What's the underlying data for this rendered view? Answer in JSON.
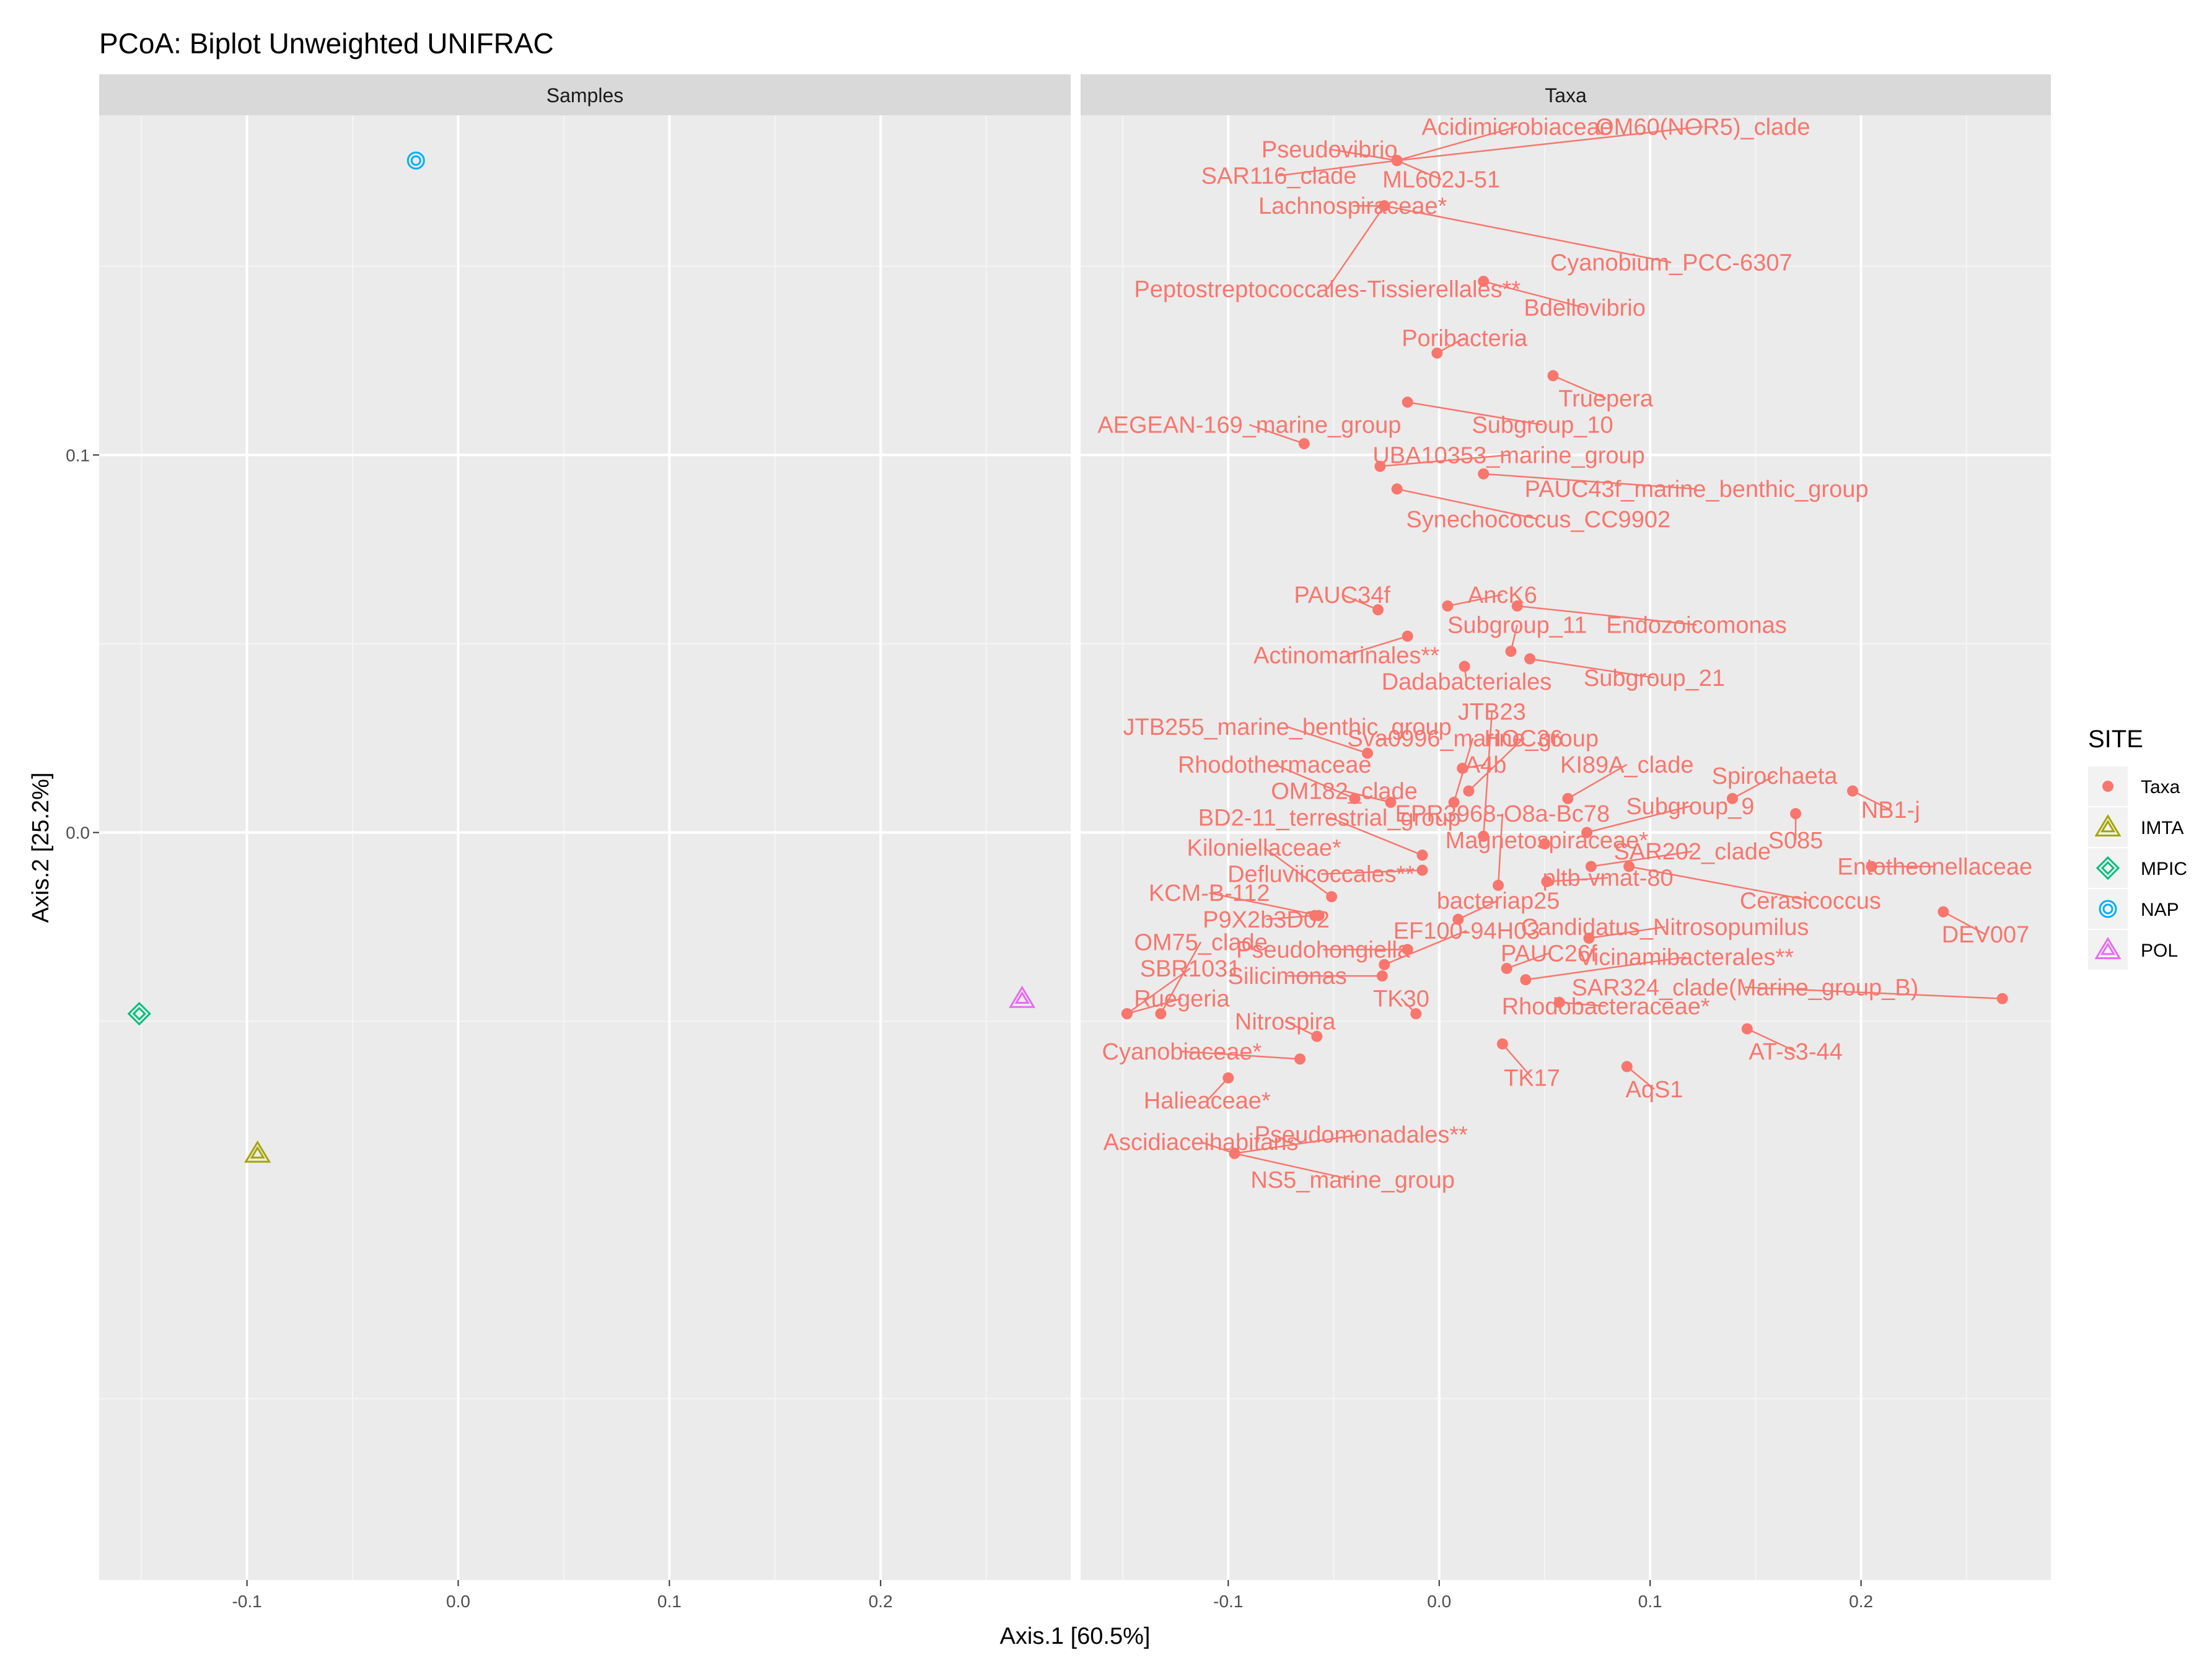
{
  "chart_data": {
    "type": "scatter",
    "title": "PCoA: Biplot Unweighted UNIFRAC",
    "xlabel": "Axis.1   [60.5%]",
    "ylabel": "Axis.2   [25.2%]",
    "xlim": [
      -0.17,
      0.29
    ],
    "ylim": [
      -0.198,
      0.19
    ],
    "x_ticks": [
      -0.1,
      0.0,
      0.1,
      0.2
    ],
    "x_tick_labels": [
      "-0.1",
      "0.0",
      "0.1",
      "0.2"
    ],
    "y_ticks": [
      0.0,
      0.1
    ],
    "y_tick_labels": [
      "0.0",
      "0.1"
    ],
    "grid": true,
    "legend_position": "right",
    "colors": {
      "Taxa": "#f8766d",
      "IMTA": "#a3a500",
      "MPIC": "#00bf7d",
      "NAP": "#00b0f6",
      "POL": "#e76bf3"
    },
    "legend": {
      "title": "SITE",
      "entries": [
        {
          "name": "Taxa",
          "shape": "dot",
          "color": "#f8766d"
        },
        {
          "name": "IMTA",
          "shape": "triangle",
          "color": "#a3a500"
        },
        {
          "name": "MPIC",
          "shape": "diamond",
          "color": "#00bf7d"
        },
        {
          "name": "NAP",
          "shape": "circle",
          "color": "#00b0f6"
        },
        {
          "name": "POL",
          "shape": "triangle",
          "color": "#e76bf3"
        }
      ]
    },
    "panels": [
      {
        "strip": "Samples",
        "points": [
          {
            "site": "NAP",
            "x": -0.02,
            "y": 0.178
          },
          {
            "site": "MPIC",
            "x": -0.151,
            "y": -0.048
          },
          {
            "site": "IMTA",
            "x": -0.095,
            "y": -0.085
          },
          {
            "site": "POL",
            "x": 0.267,
            "y": -0.044
          }
        ]
      },
      {
        "strip": "Taxa",
        "points": [
          {
            "label": "Acidimicrobiaceae",
            "x": -0.02,
            "y": 0.178,
            "lx": 0.037,
            "ly": 0.187
          },
          {
            "label": "OM60(NOR5)_clade",
            "x": -0.02,
            "y": 0.178,
            "lx": 0.125,
            "ly": 0.187
          },
          {
            "label": "Pseudovibrio",
            "x": -0.02,
            "y": 0.178,
            "lx": -0.052,
            "ly": 0.181
          },
          {
            "label": "SAR116_clade",
            "x": -0.02,
            "y": 0.178,
            "lx": -0.076,
            "ly": 0.174
          },
          {
            "label": "ML602J-51",
            "x": -0.02,
            "y": 0.178,
            "lx": 0.001,
            "ly": 0.173
          },
          {
            "label": "Lachnospiraceae*",
            "x": -0.026,
            "y": 0.166,
            "lx": -0.041,
            "ly": 0.166
          },
          {
            "label": "Cyanobium_PCC-6307",
            "x": -0.026,
            "y": 0.166,
            "lx": 0.11,
            "ly": 0.151
          },
          {
            "label": "Peptostreptococcales-Tissierellales**",
            "x": -0.026,
            "y": 0.166,
            "lx": -0.053,
            "ly": 0.144
          },
          {
            "label": "Bdellovibrio",
            "x": 0.021,
            "y": 0.146,
            "lx": 0.069,
            "ly": 0.139
          },
          {
            "label": "Poribacteria",
            "x": -0.001,
            "y": 0.127,
            "lx": 0.012,
            "ly": 0.131
          },
          {
            "label": "Truepera",
            "x": 0.054,
            "y": 0.121,
            "lx": 0.079,
            "ly": 0.115
          },
          {
            "label": "Subgroup_10",
            "x": -0.015,
            "y": 0.114,
            "lx": 0.049,
            "ly": 0.108
          },
          {
            "label": "AEGEAN-169_marine_group",
            "x": -0.064,
            "y": 0.103,
            "lx": -0.09,
            "ly": 0.108
          },
          {
            "label": "UBA10353_marine_group",
            "x": -0.028,
            "y": 0.097,
            "lx": 0.033,
            "ly": 0.1
          },
          {
            "label": "PAUC43f_marine_benthic_group",
            "x": 0.021,
            "y": 0.095,
            "lx": 0.122,
            "ly": 0.091
          },
          {
            "label": "Synechococcus_CC9902",
            "x": -0.02,
            "y": 0.091,
            "lx": 0.047,
            "ly": 0.083
          },
          {
            "label": "PAUC34f",
            "x": -0.029,
            "y": 0.059,
            "lx": -0.046,
            "ly": 0.063
          },
          {
            "label": "AncK6",
            "x": 0.004,
            "y": 0.06,
            "lx": 0.03,
            "ly": 0.063
          },
          {
            "label": "Endozoicomonas",
            "x": 0.037,
            "y": 0.06,
            "lx": 0.122,
            "ly": 0.055
          },
          {
            "label": "Subgroup_11",
            "x": 0.034,
            "y": 0.048,
            "lx": 0.037,
            "ly": 0.055
          },
          {
            "label": "Actinomarinales**",
            "x": -0.015,
            "y": 0.052,
            "lx": -0.044,
            "ly": 0.047
          },
          {
            "label": "Subgroup_21",
            "x": 0.043,
            "y": 0.046,
            "lx": 0.102,
            "ly": 0.041
          },
          {
            "label": "Dadabacteriales",
            "x": 0.012,
            "y": 0.044,
            "lx": 0.013,
            "ly": 0.04
          },
          {
            "label": "JTB23",
            "x": 0.021,
            "y": -0.001,
            "lx": 0.025,
            "ly": 0.032
          },
          {
            "label": "JTB255_marine_benthic_group",
            "x": -0.034,
            "y": 0.021,
            "lx": -0.072,
            "ly": 0.028
          },
          {
            "label": "Sva0996_marine_group",
            "x": 0.007,
            "y": 0.008,
            "lx": 0.016,
            "ly": 0.025
          },
          {
            "label": "HOC36",
            "x": 0.014,
            "y": 0.011,
            "lx": 0.04,
            "ly": 0.025
          },
          {
            "label": "Rhodothermaceae",
            "x": -0.04,
            "y": 0.009,
            "lx": -0.078,
            "ly": 0.018
          },
          {
            "label": "A4b",
            "x": 0.011,
            "y": 0.017,
            "lx": 0.022,
            "ly": 0.018
          },
          {
            "label": "KI89A_clade",
            "x": 0.061,
            "y": 0.009,
            "lx": 0.089,
            "ly": 0.018
          },
          {
            "label": "Spirochaeta",
            "x": 0.139,
            "y": 0.009,
            "lx": 0.159,
            "ly": 0.015
          },
          {
            "label": "OM182_clade",
            "x": -0.023,
            "y": 0.008,
            "lx": -0.045,
            "ly": 0.011
          },
          {
            "label": "NB1-j",
            "x": 0.196,
            "y": 0.011,
            "lx": 0.214,
            "ly": 0.006
          },
          {
            "label": "Subgroup_9",
            "x": 0.07,
            "y": 0.0,
            "lx": 0.119,
            "ly": 0.007
          },
          {
            "label": "BD2-11_terrestrial_group",
            "x": -0.008,
            "y": -0.006,
            "lx": -0.052,
            "ly": 0.004
          },
          {
            "label": "EPR3968-O8a-Bc78",
            "x": 0.028,
            "y": -0.014,
            "lx": 0.03,
            "ly": 0.005
          },
          {
            "label": "S085",
            "x": 0.169,
            "y": 0.005,
            "lx": 0.169,
            "ly": -0.002
          },
          {
            "label": "Kiloniellaceae*",
            "x": -0.051,
            "y": -0.017,
            "lx": -0.083,
            "ly": -0.004
          },
          {
            "label": "Magnetospiraceae*",
            "x": 0.05,
            "y": -0.003,
            "lx": 0.051,
            "ly": -0.002
          },
          {
            "label": "SAR202_clade",
            "x": 0.072,
            "y": -0.009,
            "lx": 0.12,
            "ly": -0.005
          },
          {
            "label": "Entotheonellaceae",
            "x": 0.205,
            "y": -0.009,
            "lx": 0.235,
            "ly": -0.009
          },
          {
            "label": "Defluviicoccales**",
            "x": -0.008,
            "y": -0.01,
            "lx": -0.056,
            "ly": -0.011
          },
          {
            "label": "pltb-vmat-80",
            "x": 0.051,
            "y": -0.013,
            "lx": 0.08,
            "ly": -0.012
          },
          {
            "label": "KCM-B-112",
            "x": -0.057,
            "y": -0.022,
            "lx": -0.109,
            "ly": -0.016
          },
          {
            "label": "bacteriap25",
            "x": 0.009,
            "y": -0.023,
            "lx": 0.028,
            "ly": -0.018
          },
          {
            "label": "Cerasicoccus",
            "x": 0.09,
            "y": -0.009,
            "lx": 0.176,
            "ly": -0.018
          },
          {
            "label": "P9X2b3D02",
            "x": -0.059,
            "y": -0.022,
            "lx": -0.082,
            "ly": -0.023
          },
          {
            "label": "Candidatus_Nitrosopumilus",
            "x": 0.071,
            "y": -0.028,
            "lx": 0.107,
            "ly": -0.025
          },
          {
            "label": "EF100-94H03",
            "x": -0.026,
            "y": -0.035,
            "lx": 0.013,
            "ly": -0.026
          },
          {
            "label": "DEV007",
            "x": 0.239,
            "y": -0.021,
            "lx": 0.259,
            "ly": -0.027
          },
          {
            "label": "OM75_clade",
            "x": -0.132,
            "y": -0.048,
            "lx": -0.113,
            "ly": -0.029
          },
          {
            "label": "Pseudohongiella",
            "x": -0.015,
            "y": -0.031,
            "lx": -0.055,
            "ly": -0.031
          },
          {
            "label": "PAUC26f",
            "x": 0.032,
            "y": -0.036,
            "lx": 0.052,
            "ly": -0.032
          },
          {
            "label": "Vicinamibacterales**",
            "x": 0.041,
            "y": -0.039,
            "lx": 0.117,
            "ly": -0.033
          },
          {
            "label": "SBR1031",
            "x": -0.148,
            "y": -0.048,
            "lx": -0.118,
            "ly": -0.036
          },
          {
            "label": "Silicimonas",
            "x": -0.027,
            "y": -0.038,
            "lx": -0.072,
            "ly": -0.038
          },
          {
            "label": "SAR324_clade(Marine_group_B)",
            "x": 0.267,
            "y": -0.044,
            "lx": 0.145,
            "ly": -0.041
          },
          {
            "label": "Ruegeria",
            "x": -0.148,
            "y": -0.048,
            "lx": -0.122,
            "ly": -0.044
          },
          {
            "label": "TK30",
            "x": -0.011,
            "y": -0.048,
            "lx": -0.018,
            "ly": -0.044
          },
          {
            "label": "Rhodobacteraceae*",
            "x": 0.057,
            "y": -0.045,
            "lx": 0.079,
            "ly": -0.046
          },
          {
            "label": "Nitrospira",
            "x": -0.058,
            "y": -0.054,
            "lx": -0.073,
            "ly": -0.05
          },
          {
            "label": "Cyanobiaceae*",
            "x": -0.066,
            "y": -0.06,
            "lx": -0.122,
            "ly": -0.058
          },
          {
            "label": "AT-s3-44",
            "x": 0.146,
            "y": -0.052,
            "lx": 0.169,
            "ly": -0.058
          },
          {
            "label": "TK17",
            "x": 0.03,
            "y": -0.056,
            "lx": 0.044,
            "ly": -0.065
          },
          {
            "label": "AqS1",
            "x": 0.089,
            "y": -0.062,
            "lx": 0.102,
            "ly": -0.068
          },
          {
            "label": "Halieaceae*",
            "x": -0.1,
            "y": -0.065,
            "lx": -0.11,
            "ly": -0.071
          },
          {
            "label": "Pseudomonadales**",
            "x": -0.097,
            "y": -0.085,
            "lx": -0.037,
            "ly": -0.08
          },
          {
            "label": "Ascidiaceihabitans",
            "x": -0.097,
            "y": -0.085,
            "lx": -0.113,
            "ly": -0.082
          },
          {
            "label": "NS5_marine_group",
            "x": -0.097,
            "y": -0.085,
            "lx": -0.041,
            "ly": -0.092
          }
        ]
      }
    ]
  }
}
